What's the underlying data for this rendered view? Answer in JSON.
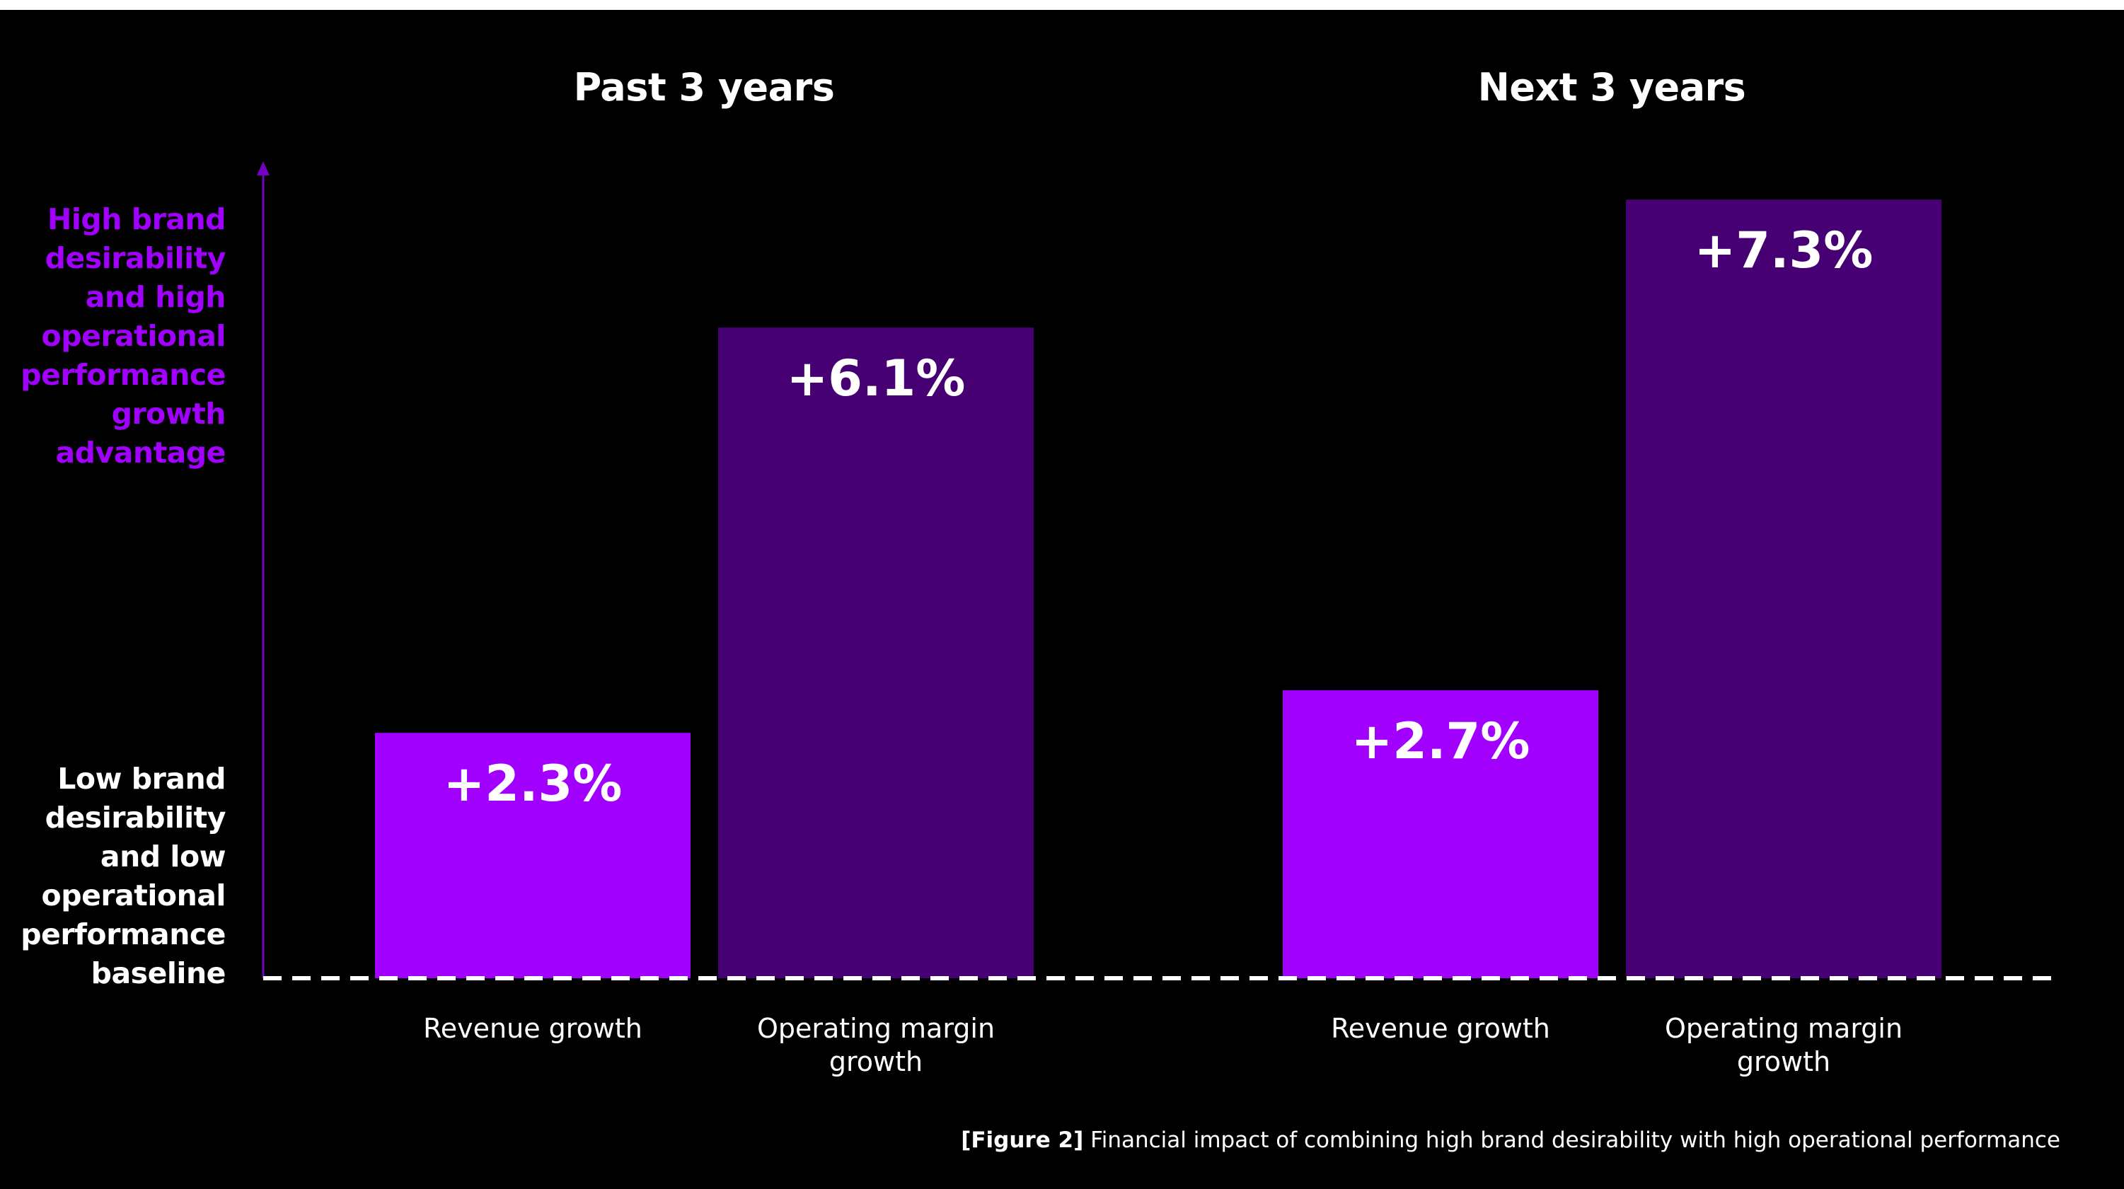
{
  "chart_data": {
    "type": "bar",
    "caption_tag": "[Figure 2]",
    "caption_text": "Financial impact of combining high brand desirability with high operational performance",
    "y_axis_top_label": [
      "High brand",
      "desirability",
      "and high",
      "operational",
      "performance",
      "growth",
      "advantage"
    ],
    "y_axis_bottom_label": [
      "Low brand",
      "desirability",
      "and low",
      "operational",
      "performance",
      "baseline"
    ],
    "colors": {
      "revenue": "#a100ff",
      "margin": "#460073",
      "axis": "#7500c0",
      "top_label": "#a100ff",
      "bottom_label": "#ffffff"
    },
    "panels": [
      {
        "title": "Past 3 years",
        "bars": [
          {
            "category": [
              "Revenue growth"
            ],
            "value": 2.3,
            "label": "+2.3%",
            "color_key": "revenue"
          },
          {
            "category": [
              "Operating margin",
              "growth"
            ],
            "value": 6.1,
            "label": "+6.1%",
            "color_key": "margin"
          }
        ]
      },
      {
        "title": "Next 3 years",
        "bars": [
          {
            "category": [
              "Revenue growth"
            ],
            "value": 2.7,
            "label": "+2.7%",
            "color_key": "revenue"
          },
          {
            "category": [
              "Operating margin",
              "growth"
            ],
            "value": 7.3,
            "label": "+7.3%",
            "color_key": "margin"
          }
        ]
      }
    ]
  }
}
